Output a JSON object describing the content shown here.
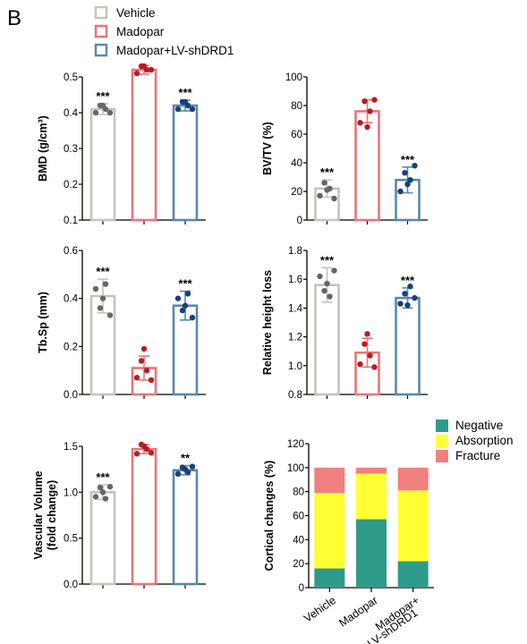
{
  "panel_label": "B",
  "legend": {
    "entries": [
      {
        "label": "Vehicle",
        "color": "#c4c4b8"
      },
      {
        "label": "Madopar",
        "color": "#e8757a"
      },
      {
        "label": "Madopar+LV-shDRD1",
        "color": "#5b88aa"
      }
    ]
  },
  "colors": {
    "vehicle_bar": "#c4c4b8",
    "vehicle_dot": "#666666",
    "madopar_bar": "#e8757a",
    "madopar_dot": "#b81c22",
    "lv_bar": "#5b88aa",
    "lv_dot": "#1a3f7a",
    "negative": "#2e9b8a",
    "absorption": "#ffff33",
    "fracture": "#f08080"
  },
  "chart_data": [
    {
      "type": "bar",
      "ylabel": "BMD (g/cm³)",
      "ylim": [
        0.1,
        0.5
      ],
      "yticks": [
        "0.1",
        "0.2",
        "0.3",
        "0.4",
        "0.5"
      ],
      "categories": [
        "Vehicle",
        "Madopar",
        "Madopar+LV-shDRD1"
      ],
      "values": [
        0.41,
        0.52,
        0.42
      ],
      "errors": [
        0.015,
        0.012,
        0.015
      ],
      "points": [
        [
          0.4,
          0.42,
          0.41,
          0.4,
          0.42
        ],
        [
          0.51,
          0.53,
          0.52,
          0.52,
          0.53
        ],
        [
          0.41,
          0.43,
          0.42,
          0.41,
          0.43
        ]
      ],
      "significance": [
        "***",
        "",
        "***"
      ]
    },
    {
      "type": "bar",
      "ylabel": "BV/TV (%)",
      "ylim": [
        0,
        100
      ],
      "yticks": [
        "0",
        "20",
        "40",
        "60",
        "80",
        "100"
      ],
      "categories": [
        "Vehicle",
        "Madopar",
        "Madopar+LV-shDRD1"
      ],
      "values": [
        22,
        76,
        28
      ],
      "errors": [
        6,
        8,
        9
      ],
      "points": [
        [
          17,
          26,
          22,
          15,
          21
        ],
        [
          68,
          83,
          76,
          84,
          65
        ],
        [
          20,
          33,
          28,
          38,
          25
        ]
      ],
      "significance": [
        "***",
        "",
        "***"
      ]
    },
    {
      "type": "bar",
      "ylabel": "Tb.Sp (mm)",
      "ylim": [
        0,
        0.6
      ],
      "yticks": [
        "0.0",
        "0.2",
        "0.4",
        "0.6"
      ],
      "categories": [
        "Vehicle",
        "Madopar",
        "Madopar+LV-shDRD1"
      ],
      "values": [
        0.41,
        0.11,
        0.37
      ],
      "errors": [
        0.07,
        0.05,
        0.06
      ],
      "points": [
        [
          0.44,
          0.36,
          0.46,
          0.33,
          0.4
        ],
        [
          0.07,
          0.14,
          0.1,
          0.06,
          0.19
        ],
        [
          0.4,
          0.35,
          0.42,
          0.32,
          0.37
        ]
      ],
      "significance": [
        "***",
        "",
        "***"
      ]
    },
    {
      "type": "bar",
      "ylabel": "Relative height loss",
      "ylim": [
        0.8,
        1.8
      ],
      "yticks": [
        "0.8",
        "1.0",
        "1.2",
        "1.4",
        "1.6",
        "1.8"
      ],
      "categories": [
        "Vehicle",
        "Madopar",
        "Madopar+LV-shDRD1"
      ],
      "values": [
        1.56,
        1.09,
        1.47
      ],
      "errors": [
        0.12,
        0.1,
        0.07
      ],
      "points": [
        [
          1.62,
          1.52,
          1.48,
          1.66,
          1.57
        ],
        [
          1.01,
          1.15,
          1.07,
          0.99,
          1.22
        ],
        [
          1.43,
          1.5,
          1.55,
          1.47,
          1.42
        ]
      ],
      "significance": [
        "***",
        "",
        "***"
      ]
    },
    {
      "type": "bar",
      "ylabel": "Vascular Volume (fold change)",
      "ylabel_lines": [
        "Vascular Volume",
        "(fold change)"
      ],
      "ylim": [
        0,
        1.5
      ],
      "yticks": [
        "0.0",
        "0.5",
        "1.0",
        "1.5"
      ],
      "categories": [
        "Vehicle",
        "Madopar",
        "Madopar+LV-shDRD1"
      ],
      "values": [
        1.0,
        1.47,
        1.24
      ],
      "errors": [
        0.08,
        0.05,
        0.05
      ],
      "points": [
        [
          0.95,
          1.05,
          0.93,
          1.06,
          1.0
        ],
        [
          1.42,
          1.52,
          1.47,
          1.43,
          1.5
        ],
        [
          1.2,
          1.27,
          1.22,
          1.28,
          1.25
        ]
      ],
      "significance": [
        "***",
        "",
        "**"
      ]
    },
    {
      "type": "stacked-bar",
      "ylabel": "Cortical changes (%)",
      "ylim": [
        0,
        120
      ],
      "yticks": [
        "0",
        "20",
        "40",
        "60",
        "80",
        "100",
        "120"
      ],
      "categories": [
        "Vehicle",
        "Madopar",
        "Madopar+\nLV-shDRD1"
      ],
      "category_lines": [
        [
          "Vehicle"
        ],
        [
          "Madopar"
        ],
        [
          "Madopar+",
          "LV-shDRD1"
        ]
      ],
      "series": [
        {
          "name": "Negative",
          "values": [
            16,
            57,
            22
          ]
        },
        {
          "name": "Absorption",
          "values": [
            63,
            38,
            59
          ]
        },
        {
          "name": "Fracture",
          "values": [
            21,
            5,
            19
          ]
        }
      ],
      "legend_position": "top-right"
    }
  ]
}
